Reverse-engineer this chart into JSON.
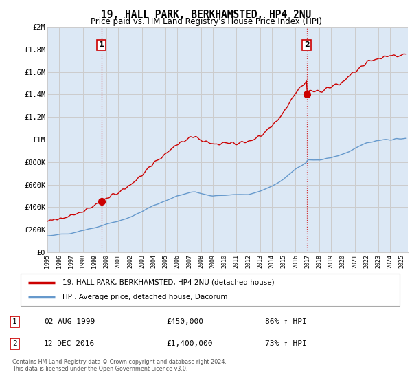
{
  "title": "19, HALL PARK, BERKHAMSTED, HP4 2NU",
  "subtitle": "Price paid vs. HM Land Registry's House Price Index (HPI)",
  "legend_line1": "19, HALL PARK, BERKHAMSTED, HP4 2NU (detached house)",
  "legend_line2": "HPI: Average price, detached house, Dacorum",
  "transaction1_date": "02-AUG-1999",
  "transaction1_price": "£450,000",
  "transaction1_hpi": "86% ↑ HPI",
  "transaction1_year": 1999.58,
  "transaction1_value": 450000,
  "transaction2_date": "12-DEC-2016",
  "transaction2_price": "£1,400,000",
  "transaction2_hpi": "73% ↑ HPI",
  "transaction2_year": 2016.94,
  "transaction2_value": 1400000,
  "hpi_color": "#6699cc",
  "price_color": "#cc0000",
  "dashed_color": "#cc0000",
  "grid_color": "#cccccc",
  "plot_bg_color": "#dce8f5",
  "background_color": "#ffffff",
  "ylim": [
    0,
    2000000
  ],
  "xlim_start": 1995.0,
  "xlim_end": 2025.5,
  "footer": "Contains HM Land Registry data © Crown copyright and database right 2024.\nThis data is licensed under the Open Government Licence v3.0.",
  "yticks": [
    0,
    200000,
    400000,
    600000,
    800000,
    1000000,
    1200000,
    1400000,
    1600000,
    1800000,
    2000000
  ],
  "ytick_labels": [
    "£0",
    "£200K",
    "£400K",
    "£600K",
    "£800K",
    "£1M",
    "£1.2M",
    "£1.4M",
    "£1.6M",
    "£1.8M",
    "£2M"
  ]
}
